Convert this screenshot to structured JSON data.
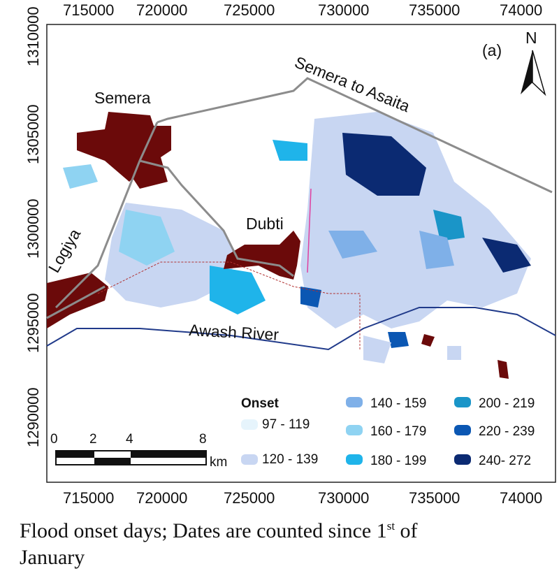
{
  "map": {
    "panel_label": "(a)",
    "north": "N",
    "x_ticks": [
      "715000",
      "720000",
      "725000",
      "730000",
      "735000",
      "74000"
    ],
    "y_ticks": [
      "1310000",
      "1305000",
      "1300000",
      "1295000",
      "1290000"
    ],
    "places": {
      "semera": "Semera",
      "dubti": "Dubti",
      "logiya": "Logiya",
      "road": "Semera to Asaita",
      "river": "Awash River"
    },
    "scale": {
      "ticks": [
        "0",
        "2",
        "4",
        "8"
      ],
      "unit": "km"
    }
  },
  "legend": {
    "title": "Onset",
    "classes": [
      {
        "label": "97 - 119",
        "color": "#e6f4fc"
      },
      {
        "label": "120 - 139",
        "color": "#c8d6f2"
      },
      {
        "label": "140 - 159",
        "color": "#7fb0e8"
      },
      {
        "label": "160 - 179",
        "color": "#8fd3f2"
      },
      {
        "label": "180 - 199",
        "color": "#1fb4ea"
      },
      {
        "label": "200 - 219",
        "color": "#1a95c8"
      },
      {
        "label": "220 - 239",
        "color": "#0b57b3"
      },
      {
        "label": "240- 272",
        "color": "#0b2a72"
      }
    ]
  },
  "colors": {
    "town": "#6b0a0a",
    "road": "#8c8c8c",
    "river": "#203a8a"
  },
  "caption": {
    "text": "Flood onset days; Dates are counted since 1",
    "sup": "st",
    "tail": " of",
    "line2": "January"
  }
}
